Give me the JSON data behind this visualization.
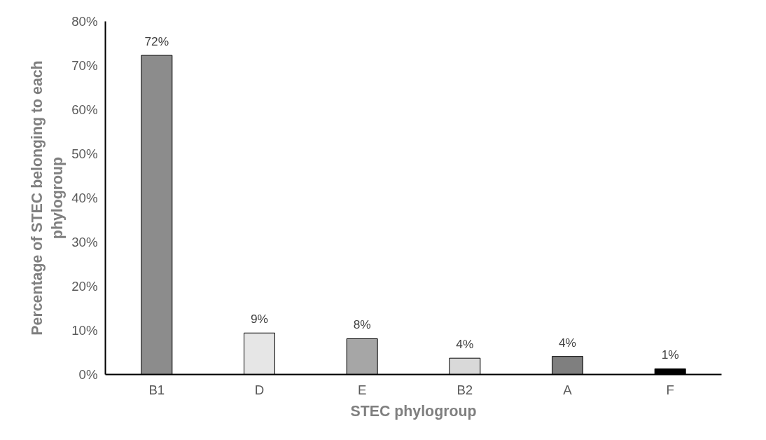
{
  "chart_data": {
    "type": "bar",
    "xlabel": "STEC phylogroup",
    "ylabel": "Percentage of STEC belonging to each phylogroup",
    "categories": [
      "B1",
      "D",
      "E",
      "B2",
      "A",
      "F"
    ],
    "values": [
      72.3,
      9.4,
      8.1,
      3.7,
      4.1,
      1.3
    ],
    "value_labels": [
      "72%",
      "9%",
      "8%",
      "4%",
      "4%",
      "1%"
    ],
    "colors": [
      "#8c8c8c",
      "#e6e6e6",
      "#a6a6a6",
      "#d9d9d9",
      "#7f7f7f",
      "#000000"
    ],
    "ylim": [
      0,
      80
    ],
    "yticks": [
      {
        "value": 0,
        "label": "0%"
      },
      {
        "value": 10,
        "label": "10%"
      },
      {
        "value": 20,
        "label": "20%"
      },
      {
        "value": 30,
        "label": "30%"
      },
      {
        "value": 40,
        "label": "40%"
      },
      {
        "value": 50,
        "label": "50%"
      },
      {
        "value": 60,
        "label": "60%"
      },
      {
        "value": 70,
        "label": "70%"
      },
      {
        "value": 80,
        "label": "80%"
      }
    ],
    "grid": false
  }
}
